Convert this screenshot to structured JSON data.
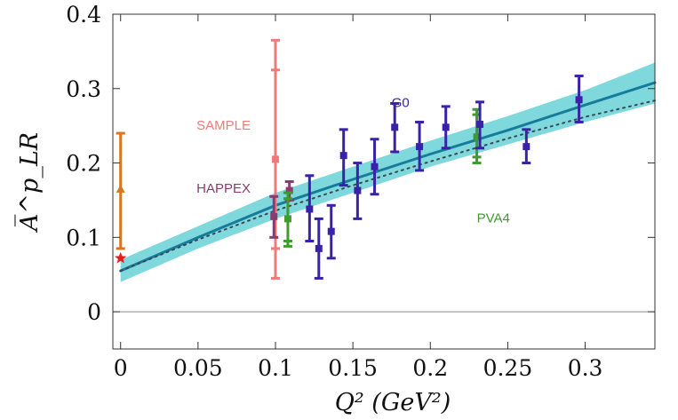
{
  "chart_data": {
    "type": "scatter",
    "title": "",
    "xlabel": "Q² (GeV²)",
    "ylabel": "A̅^p_LR",
    "xlim": [
      -0.005,
      0.345
    ],
    "ylim": [
      -0.05,
      0.4
    ],
    "x_ticks": [
      0,
      0.05,
      0.1,
      0.15,
      0.2,
      0.25,
      0.3
    ],
    "x_tick_labels": [
      "0",
      "0.05",
      "0.1",
      "0.15",
      "0.2",
      "0.25",
      "0.3"
    ],
    "y_ticks": [
      0,
      0.1,
      0.2,
      0.3,
      0.4
    ],
    "y_tick_labels": [
      "0",
      "0.1",
      "0.2",
      "0.3",
      "0.4"
    ],
    "zero_line": true,
    "band": {
      "name": "theory band",
      "color": "#7fd8dc",
      "x": [
        0,
        0.05,
        0.1,
        0.15,
        0.2,
        0.25,
        0.3,
        0.345
      ],
      "lower": [
        0.04,
        0.085,
        0.125,
        0.16,
        0.195,
        0.225,
        0.255,
        0.28
      ],
      "upper": [
        0.07,
        0.115,
        0.16,
        0.195,
        0.23,
        0.263,
        0.298,
        0.335
      ]
    },
    "curves": [
      {
        "name": "central fit",
        "style": "solid",
        "color": "#177c9c",
        "x": [
          0,
          0.05,
          0.1,
          0.15,
          0.2,
          0.25,
          0.3,
          0.345
        ],
        "y": [
          0.055,
          0.1,
          0.143,
          0.178,
          0.212,
          0.244,
          0.278,
          0.308
        ]
      },
      {
        "name": "dotted curve",
        "style": "dotted",
        "color": "#3a4a55",
        "x": [
          0,
          0.05,
          0.1,
          0.15,
          0.2,
          0.25,
          0.3,
          0.345
        ],
        "y": [
          0.055,
          0.097,
          0.136,
          0.17,
          0.202,
          0.233,
          0.262,
          0.284
        ]
      }
    ],
    "series": [
      {
        "name": "SAMPLE",
        "color": "#ef7a7a",
        "points": [
          {
            "x": 0.1,
            "y": 0.205,
            "lo": 0.045,
            "hi": 0.365,
            "inner_lo": 0.085,
            "inner_hi": 0.325
          }
        ]
      },
      {
        "name": "HAPPEX",
        "color": "#8a3b6f",
        "points": [
          {
            "x": 0.099,
            "y": 0.128,
            "lo": 0.1,
            "hi": 0.155
          },
          {
            "x": 0.109,
            "y": 0.163,
            "lo": 0.15,
            "hi": 0.175
          }
        ]
      },
      {
        "name": "PVA4",
        "color": "#3f9a2f",
        "points": [
          {
            "x": 0.108,
            "y": 0.125,
            "lo": 0.088,
            "hi": 0.16,
            "inner_lo": 0.095,
            "inner_hi": 0.152
          },
          {
            "x": 0.23,
            "y": 0.235,
            "lo": 0.2,
            "hi": 0.272,
            "inner_lo": 0.208,
            "inner_hi": 0.265
          }
        ]
      },
      {
        "name": "G0",
        "color": "#3a22a8",
        "points": [
          {
            "x": 0.122,
            "y": 0.138,
            "lo": 0.095,
            "hi": 0.183
          },
          {
            "x": 0.128,
            "y": 0.085,
            "lo": 0.045,
            "hi": 0.125
          },
          {
            "x": 0.136,
            "y": 0.108,
            "lo": 0.072,
            "hi": 0.143
          },
          {
            "x": 0.144,
            "y": 0.21,
            "lo": 0.17,
            "hi": 0.245
          },
          {
            "x": 0.153,
            "y": 0.163,
            "lo": 0.125,
            "hi": 0.2
          },
          {
            "x": 0.164,
            "y": 0.195,
            "lo": 0.158,
            "hi": 0.232
          },
          {
            "x": 0.177,
            "y": 0.248,
            "lo": 0.215,
            "hi": 0.28
          },
          {
            "x": 0.193,
            "y": 0.222,
            "lo": 0.19,
            "hi": 0.255
          },
          {
            "x": 0.21,
            "y": 0.248,
            "lo": 0.22,
            "hi": 0.276
          },
          {
            "x": 0.232,
            "y": 0.252,
            "lo": 0.22,
            "hi": 0.282
          },
          {
            "x": 0.262,
            "y": 0.222,
            "lo": 0.2,
            "hi": 0.245
          },
          {
            "x": 0.296,
            "y": 0.285,
            "lo": 0.255,
            "hi": 0.317
          }
        ]
      },
      {
        "name": "Q²=0 point",
        "color": "#d9761e",
        "points": [
          {
            "x": 0,
            "y": 0.165,
            "lo": 0.085,
            "hi": 0.24,
            "marker": "triangle"
          }
        ]
      },
      {
        "name": "Q²=0 star",
        "color": "#e0201c",
        "points": [
          {
            "x": 0,
            "y": 0.072,
            "marker": "star"
          }
        ]
      }
    ],
    "annotations": [
      {
        "text": "SAMPLE",
        "color": "#ef7a7a",
        "x": 0.049,
        "y": 0.245
      },
      {
        "text": "HAPPEX",
        "color": "#8a3b6f",
        "x": 0.049,
        "y": 0.16
      },
      {
        "text": "G0",
        "color": "#3a22a8",
        "x": 0.175,
        "y": 0.275
      },
      {
        "text": "PVA4",
        "color": "#3f9a2f",
        "x": 0.23,
        "y": 0.12
      }
    ]
  }
}
